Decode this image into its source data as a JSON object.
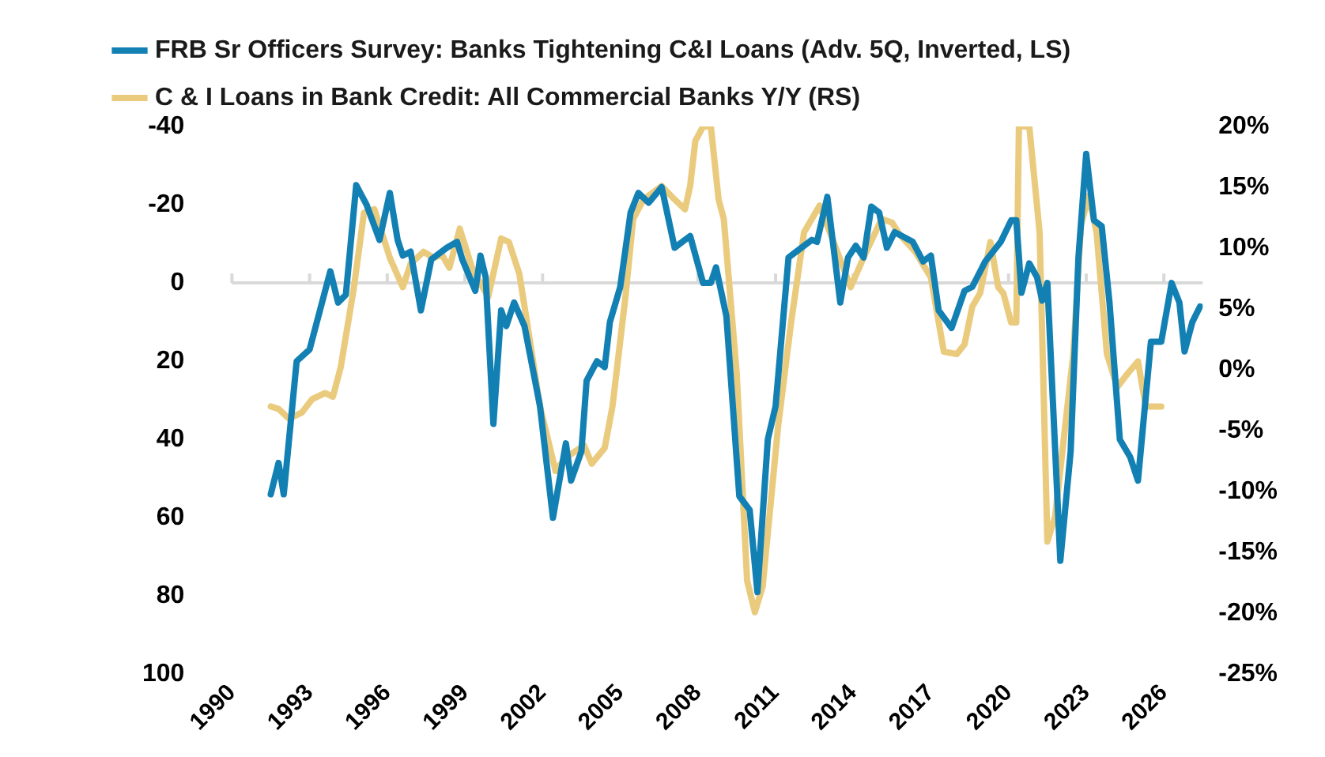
{
  "chart_data": {
    "type": "line",
    "legend": "top left",
    "xlim": [
      1990,
      2027.5
    ],
    "xticks": [
      1990,
      1993,
      1996,
      1999,
      2002,
      2005,
      2008,
      2011,
      2014,
      2017,
      2020,
      2023,
      2026
    ],
    "ylim": [
      100,
      -40
    ],
    "yticks": [
      -40,
      -20,
      0,
      20,
      40,
      60,
      80,
      100
    ],
    "y2lim": [
      -25,
      20
    ],
    "y2ticks": [
      {
        "value": -25,
        "label": "-25%"
      },
      {
        "value": -20,
        "label": "-20%"
      },
      {
        "value": -15,
        "label": "-15%"
      },
      {
        "value": -10,
        "label": "-10%"
      },
      {
        "value": -5,
        "label": "-5%"
      },
      {
        "value": 0,
        "label": "0%"
      },
      {
        "value": 5,
        "label": "5%"
      },
      {
        "value": 10,
        "label": "10%"
      },
      {
        "value": 15,
        "label": "15%"
      },
      {
        "value": 20,
        "label": "20%"
      }
    ],
    "grid": false,
    "ref_lines": [
      {
        "axis": "y",
        "value": 0,
        "color": "#d9d9d9"
      }
    ],
    "series": [
      {
        "name": "FRB Sr Officers Survey: Banks Tightening C&I Loans (Adv. 5Q, Inverted, LS)",
        "color": "#1380b4",
        "axis": "y",
        "x": [
          1991.5,
          1991.8,
          1992.0,
          1992.5,
          1993.0,
          1993.8,
          1994.1,
          1994.4,
          1994.8,
          1995.2,
          1995.7,
          1996.1,
          1996.4,
          1996.6,
          1996.9,
          1997.3,
          1997.7,
          1998.3,
          1998.7,
          1998.9,
          1999.4,
          1999.6,
          1999.8,
          2000.1,
          2000.4,
          2000.6,
          2000.9,
          2001.3,
          2001.9,
          2002.4,
          2002.9,
          2003.1,
          2003.5,
          2003.7,
          2004.1,
          2004.4,
          2004.6,
          2005.0,
          2005.4,
          2005.7,
          2006.1,
          2006.6,
          2007.1,
          2007.7,
          2008.2,
          2008.5,
          2008.7,
          2009.1,
          2009.6,
          2010.0,
          2010.3,
          2010.7,
          2011.0,
          2011.5,
          2012.0,
          2012.4,
          2012.6,
          2013.0,
          2013.5,
          2013.8,
          2014.1,
          2014.4,
          2014.7,
          2015.0,
          2015.3,
          2015.6,
          2016.3,
          2016.7,
          2017.0,
          2017.3,
          2017.8,
          2018.3,
          2018.6,
          2019.1,
          2019.7,
          2020.1,
          2020.3,
          2020.5,
          2020.8,
          2021.1,
          2021.3,
          2021.5,
          2022.0,
          2022.4,
          2022.7,
          2023.0,
          2023.3,
          2023.6,
          2023.9,
          2024.3,
          2024.7,
          2025.0,
          2025.5,
          2025.9,
          2026.3,
          2026.6,
          2026.8,
          2027.1,
          2027.4
        ],
        "values": [
          54,
          46,
          54,
          20,
          17,
          -3,
          5,
          3,
          -25,
          -20,
          -11,
          -23,
          -11,
          -7,
          -8,
          7,
          -6,
          -9,
          -10.5,
          -6,
          2,
          -7,
          -1.5,
          36,
          7,
          11,
          5,
          11,
          31.5,
          60,
          41,
          50.5,
          43,
          25,
          20,
          21.5,
          10,
          1,
          -18,
          -23,
          -20.5,
          -24.5,
          -9,
          -12,
          0,
          0,
          -4,
          8.5,
          54.5,
          58,
          79,
          40,
          31.5,
          -6.5,
          -9,
          -11,
          -10.5,
          -22,
          5,
          -6.5,
          -9.5,
          -6.5,
          -19.5,
          -18,
          -9,
          -13,
          -10.5,
          -5.5,
          -7,
          7,
          11.5,
          2,
          1,
          -5.5,
          -10.5,
          -16,
          -16,
          2.5,
          -5,
          -1.5,
          4.5,
          0,
          71,
          43,
          -6.5,
          -33,
          -16,
          -14.5,
          5,
          40,
          44.5,
          50.5,
          15,
          15,
          0,
          5,
          17.5,
          10,
          6
        ]
      },
      {
        "name": "C & I Loans in Bank Credit: All Commercial Banks Y/Y (RS)",
        "color": "#eacb7e",
        "axis": "y2",
        "x": [
          1991.5,
          1991.8,
          1992.2,
          1992.7,
          1993.1,
          1993.6,
          1993.9,
          1994.2,
          1994.7,
          1995.1,
          1995.5,
          1996.1,
          1996.6,
          1996.9,
          1997.4,
          1997.8,
          1998.1,
          1998.4,
          1998.8,
          1999.3,
          1999.9,
          2000.4,
          2000.7,
          2001.1,
          2001.4,
          2001.9,
          2002.5,
          2002.9,
          2003.6,
          2003.9,
          2004.4,
          2004.7,
          2005.2,
          2005.5,
          2005.9,
          2006.6,
          2007.1,
          2007.5,
          2007.7,
          2007.9,
          2008.2,
          2008.5,
          2008.8,
          2009.0,
          2009.5,
          2009.9,
          2010.2,
          2010.5,
          2011.1,
          2011.6,
          2012.1,
          2012.7,
          2013.1,
          2013.9,
          2014.5,
          2015.1,
          2015.5,
          2015.8,
          2016.4,
          2017.0,
          2017.5,
          2018.0,
          2018.3,
          2018.6,
          2018.9,
          2019.3,
          2019.6,
          2019.8,
          2020.1,
          2020.3,
          2020.4,
          2020.8,
          2021.2,
          2021.5,
          2021.8,
          2022.5,
          2022.8,
          2023.1,
          2023.4,
          2023.8,
          2024.2,
          2024.6,
          2025.0,
          2025.3,
          2025.9
        ],
        "values": [
          -3,
          -3.2,
          -4,
          -3.5,
          -2.4,
          -1.9,
          -2.2,
          0.2,
          6.6,
          12.9,
          13.2,
          9.2,
          6.8,
          8.7,
          9.7,
          9.2,
          9.5,
          8.4,
          11.6,
          8.2,
          6,
          10.8,
          10.5,
          7.9,
          3.9,
          -3,
          -8.3,
          -7.2,
          -6.2,
          -7.7,
          -6.4,
          -3,
          6,
          12.4,
          14,
          15.1,
          14,
          13.2,
          15.1,
          18.8,
          20,
          20,
          14,
          12.4,
          -0.3,
          -17.3,
          -19.9,
          -17.8,
          -4.6,
          3.9,
          11.3,
          13.5,
          11.3,
          6.8,
          9.7,
          12.4,
          12.1,
          11.1,
          9.7,
          7.6,
          1.5,
          1.3,
          2.1,
          5.2,
          6.3,
          10.5,
          6.8,
          6.3,
          3.9,
          3.9,
          20,
          20,
          11.3,
          -14.1,
          -12,
          1.3,
          11.9,
          14.3,
          11.3,
          1.3,
          -1.4,
          -0.3,
          0.7,
          -3,
          -3
        ]
      }
    ]
  }
}
